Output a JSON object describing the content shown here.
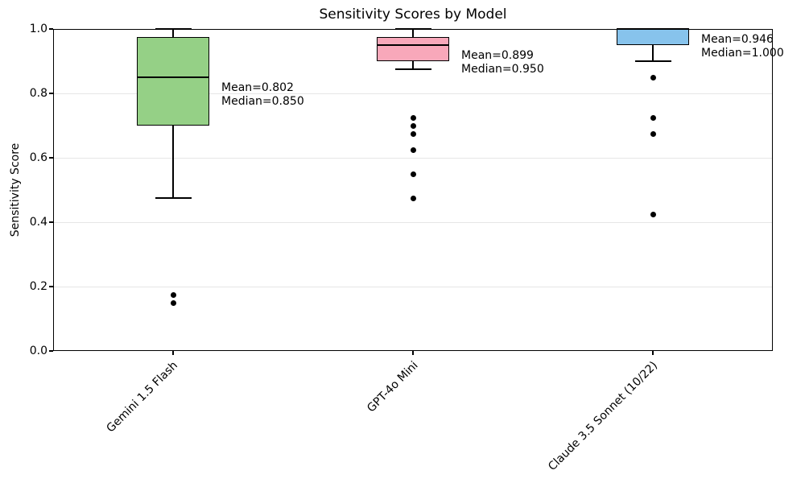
{
  "chart_data": {
    "type": "box",
    "title": "Sensitivity Scores by Model",
    "xlabel": "",
    "ylabel": "Sensitivity Score",
    "ylim": [
      0.0,
      1.0
    ],
    "yticks": [
      {
        "value": 0.0,
        "label": "0.0"
      },
      {
        "value": 0.2,
        "label": "0.2"
      },
      {
        "value": 0.4,
        "label": "0.4"
      },
      {
        "value": 0.6,
        "label": "0.6"
      },
      {
        "value": 0.8,
        "label": "0.8"
      },
      {
        "value": 1.0,
        "label": "1.0"
      }
    ],
    "grid": "horizontal, light gray, on",
    "legend": "none",
    "categories": [
      "Gemini 1.5 Flash",
      "GPT-4o Mini",
      "Claude 3.5 Sonnet (10/22)"
    ],
    "series": [
      {
        "name": "Gemini 1.5 Flash",
        "color": "#95d086",
        "edge_color": "#000000",
        "stats": {
          "whisker_low": 0.475,
          "q1": 0.7,
          "median": 0.85,
          "q3": 0.975,
          "whisker_high": 1.0,
          "mean": 0.802
        },
        "outliers": [
          0.175,
          0.15
        ],
        "annotation_lines": [
          "Mean=0.802",
          "Median=0.850"
        ]
      },
      {
        "name": "GPT-4o Mini",
        "color": "#f8a8ba",
        "edge_color": "#000000",
        "stats": {
          "whisker_low": 0.875,
          "q1": 0.9,
          "median": 0.95,
          "q3": 0.975,
          "whisker_high": 1.0,
          "mean": 0.899
        },
        "outliers": [
          0.725,
          0.7,
          0.675,
          0.625,
          0.55,
          0.475
        ],
        "annotation_lines": [
          "Mean=0.899",
          "Median=0.950"
        ]
      },
      {
        "name": "Claude 3.5 Sonnet (10/22)",
        "color": "#87c3ec",
        "edge_color": "#000000",
        "stats": {
          "whisker_low": 0.9,
          "q1": 0.95,
          "median": 1.0,
          "q3": 1.0,
          "whisker_high": 1.0,
          "mean": 0.946
        },
        "outliers": [
          0.85,
          0.725,
          0.675,
          0.425
        ],
        "annotation_lines": [
          "Mean=0.946",
          "Median=1.000"
        ]
      }
    ]
  }
}
